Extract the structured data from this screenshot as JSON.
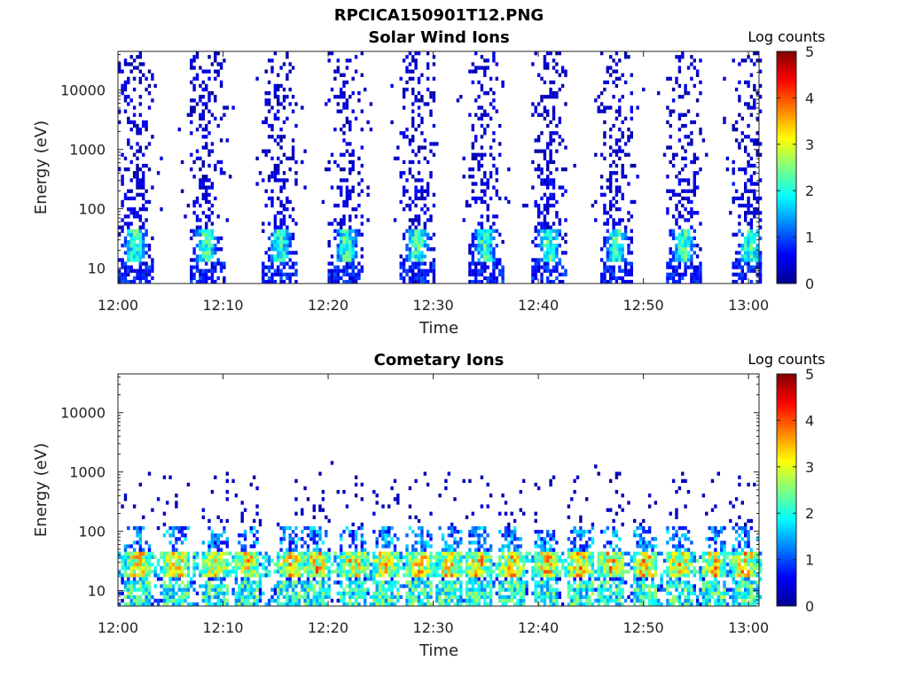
{
  "figure": {
    "title": "RPCICA150901T12.PNG"
  },
  "chart_data": [
    {
      "type": "heatmap",
      "title": "Solar Wind Ions",
      "xlabel": "Time",
      "ylabel": "Energy (eV)",
      "x_ticks": [
        "12:00",
        "12:10",
        "12:20",
        "12:30",
        "12:40",
        "12:50",
        "13:00"
      ],
      "x_range_minutes": [
        0,
        61
      ],
      "y_ticks": [
        "10",
        "100",
        "1000",
        "10000"
      ],
      "y_scale": "log",
      "y_range_ev": [
        5.5,
        45000
      ],
      "colorbar": {
        "label": "Log counts",
        "ticks": [
          "0",
          "1",
          "2",
          "3",
          "4",
          "5"
        ],
        "range": [
          0,
          5
        ],
        "colormap": "jet"
      },
      "burst_centers_minutes": [
        1.5,
        8.3,
        15.3,
        21.6,
        28.4,
        34.8,
        40.9,
        47.3,
        53.7,
        60.0
      ],
      "peak_energy_ev": 25,
      "peak_log_counts": 2.5
    },
    {
      "type": "heatmap",
      "title": "Cometary Ions",
      "xlabel": "Time",
      "ylabel": "Energy (eV)",
      "x_ticks": [
        "12:00",
        "12:10",
        "12:20",
        "12:30",
        "12:40",
        "12:50",
        "13:00"
      ],
      "x_range_minutes": [
        0,
        61
      ],
      "y_ticks": [
        "10",
        "100",
        "1000",
        "10000"
      ],
      "y_scale": "log",
      "y_range_ev": [
        5.5,
        45000
      ],
      "colorbar": {
        "label": "Log counts",
        "ticks": [
          "0",
          "1",
          "2",
          "3",
          "4",
          "5"
        ],
        "range": [
          0,
          5
        ],
        "colormap": "jet"
      },
      "burst_centers_minutes": [
        1.8,
        5.4,
        9.2,
        12.1,
        16.3,
        18.8,
        22.3,
        25.3,
        28.6,
        31.4,
        34.2,
        37.3,
        40.6,
        43.8,
        46.8,
        50.0,
        53.3,
        56.6,
        59.6
      ],
      "peak_energy_ev": 28,
      "peak_log_counts": 3.8
    }
  ]
}
